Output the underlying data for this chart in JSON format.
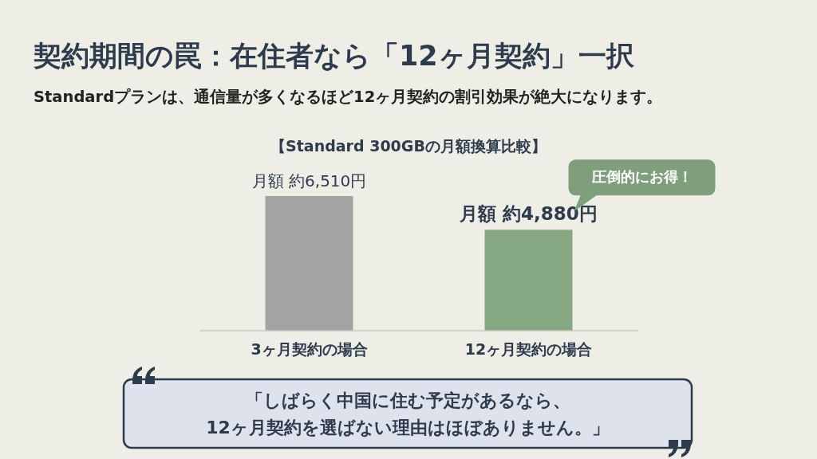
{
  "chart_data": {
    "type": "bar",
    "title": "契約期間の罠：在住者なら「12ヶ月契約」一択",
    "subtitle": "Standardプランは、通信量が多くなるほど12ヶ月契約の割引効果が絶大になります。",
    "xlabel": "【Standard 300GBの月額換算比較】",
    "categories": [
      "3ヶ月契約の場合",
      "12ヶ月契約の場合"
    ],
    "values": [
      6510,
      4880
    ],
    "colors": [
      "#a3a3a3",
      "#86a883"
    ],
    "value_labels": [
      "月額 約6,510円",
      "月額 約4,880円"
    ],
    "annotations": [
      "圧倒的にお得！",
      "「しばらく中国に住む予定があるなら、\n12ヶ月契約を選ばない理由はほぼありません。」"
    ]
  }
}
